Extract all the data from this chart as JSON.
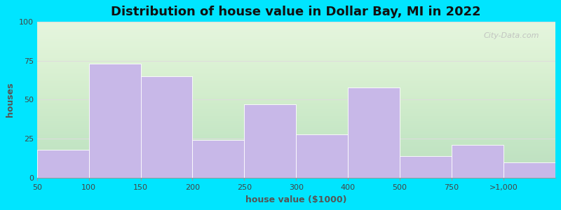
{
  "title": "Distribution of house value in Dollar Bay, MI in 2022",
  "xlabel": "house value ($1000)",
  "ylabel": "houses",
  "bar_color": "#c8b8e8",
  "bar_edge_color": "#ffffff",
  "xtick_labels": [
    "50",
    "100",
    "150",
    "200",
    "250",
    "300",
    "400",
    "500",
    "750",
    ">1,000"
  ],
  "values": [
    18,
    73,
    65,
    24,
    47,
    28,
    58,
    14,
    21,
    10
  ],
  "ylim": [
    0,
    100
  ],
  "yticks": [
    0,
    25,
    50,
    75,
    100
  ],
  "bg_outer": "#00e5ff",
  "bg_plot_color": "#eef8e8",
  "grid_color": "#dddddd",
  "title_fontsize": 13,
  "axis_label_fontsize": 9,
  "tick_fontsize": 8,
  "watermark_text": "City-Data.com"
}
